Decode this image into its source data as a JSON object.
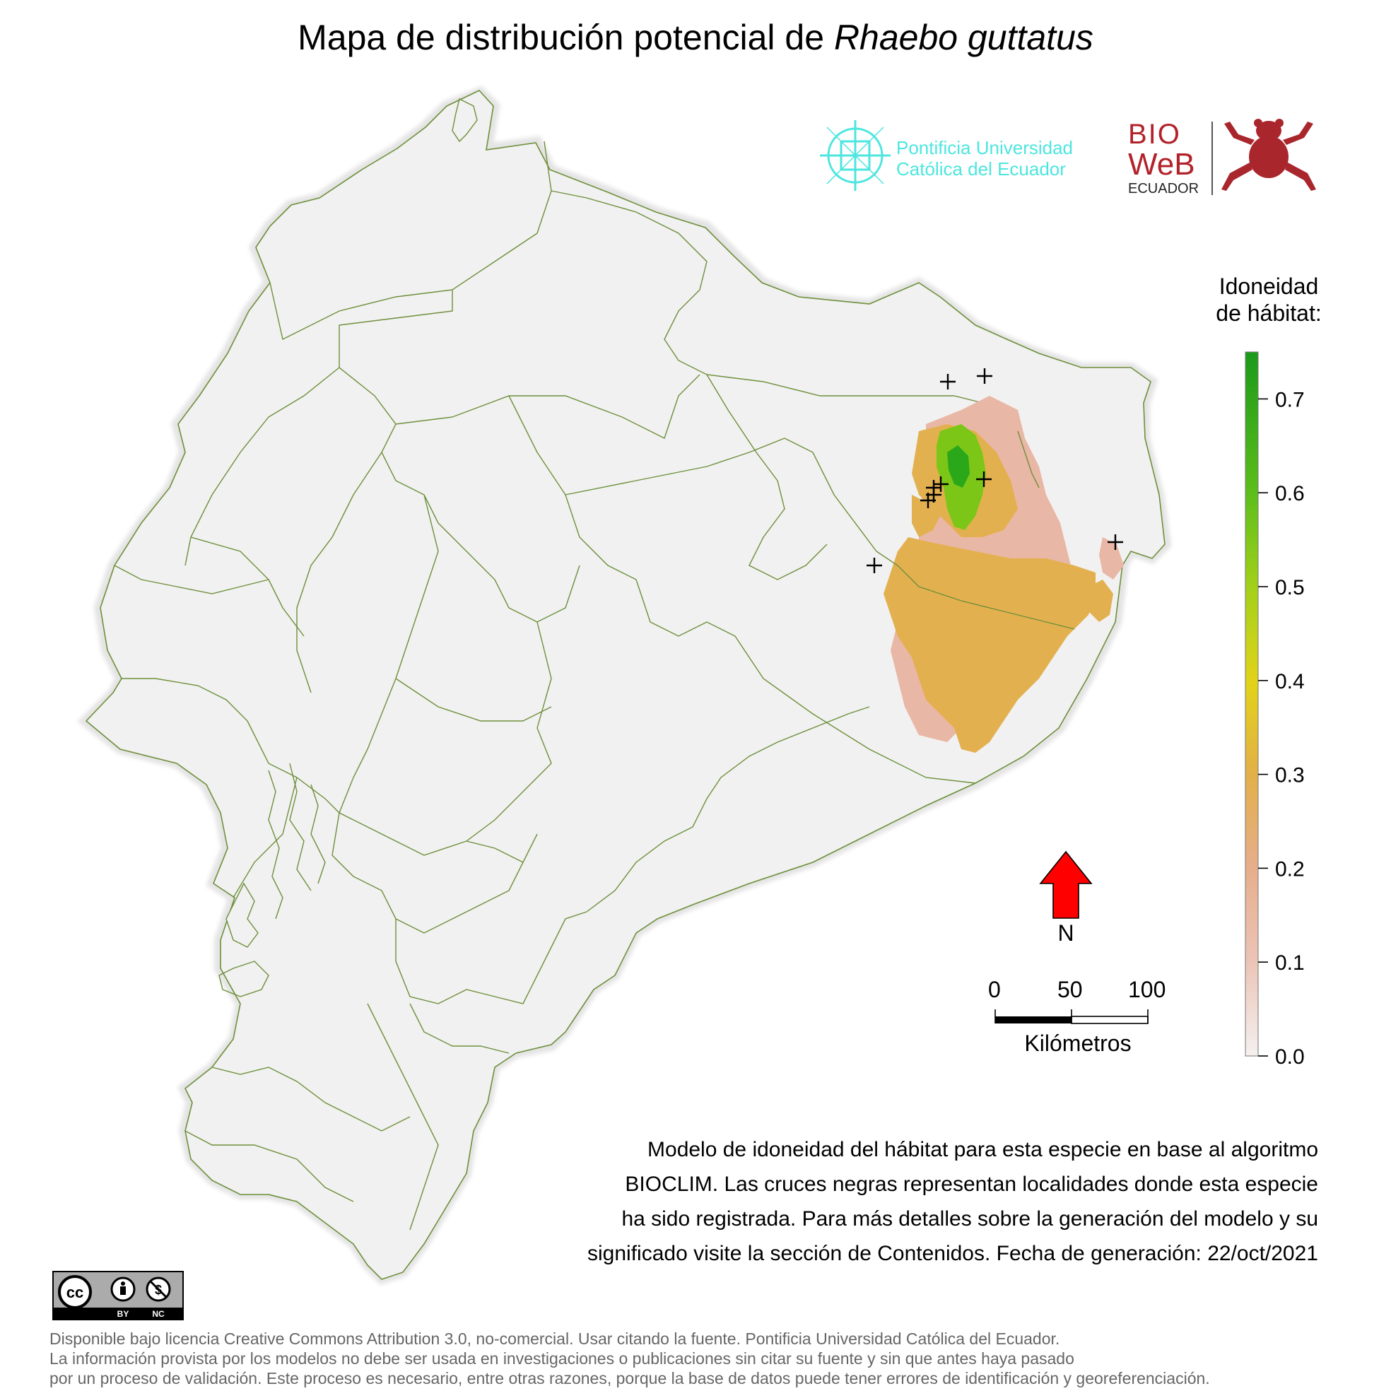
{
  "title": {
    "prefix": "Mapa de distribución potencial de ",
    "species": "Rhaebo guttatus"
  },
  "logos": {
    "puce": {
      "line1": "Pontificia Universidad",
      "line2": "Católica del Ecuador",
      "color": "#4de6df"
    },
    "bioweb": {
      "line1": "BIO",
      "line2": "WeB",
      "line3": "ECUADOR",
      "color": "#b2222b"
    }
  },
  "legend": {
    "title_line1": "Idoneidad",
    "title_line2": "de hábitat:",
    "ticks": [
      "0.0",
      "0.1",
      "0.2",
      "0.3",
      "0.4",
      "0.5",
      "0.6",
      "0.7"
    ],
    "range": [
      0.0,
      0.75
    ],
    "colors": [
      "#f2f2f2",
      "#e8b9a9",
      "#e3b05a",
      "#e6d81a",
      "#7cc618",
      "#1a9a1a"
    ]
  },
  "north_arrow": {
    "label": "N",
    "color": "#ff0000"
  },
  "scale_bar": {
    "labels": [
      "0",
      "50",
      "100"
    ],
    "unit": "Kilómetros"
  },
  "description": [
    "Modelo de idoneidad del hábitat para esta especie en base al algoritmo",
    "BIOCLIM. Las cruces negras representan localidades donde esta especie",
    "ha sido registrada. Para más detalles sobre la generación del modelo y su",
    "significado visite la sección de Contenidos. Fecha de generación: 22/oct/2021"
  ],
  "license_badge": {
    "by": "BY",
    "nc": "NC"
  },
  "footer": [
    "Disponible bajo licencia Creative Commons Attribution 3.0, no-comercial. Usar citando la fuente. Pontificia Universidad Católica del Ecuador.",
    "La información provista por los modelos no debe ser usada en investigaciones o publicaciones sin citar su fuente y sin que antes haya pasado",
    "por un proceso de validación. Este proceso es necesario, entre otras razones, porque la base de datos puede tener errores de identificación y georeferenciación."
  ],
  "map": {
    "country_fill": "#f1f1f1",
    "boundary_color": "#6e8f3a",
    "occurrence_count": 9
  }
}
